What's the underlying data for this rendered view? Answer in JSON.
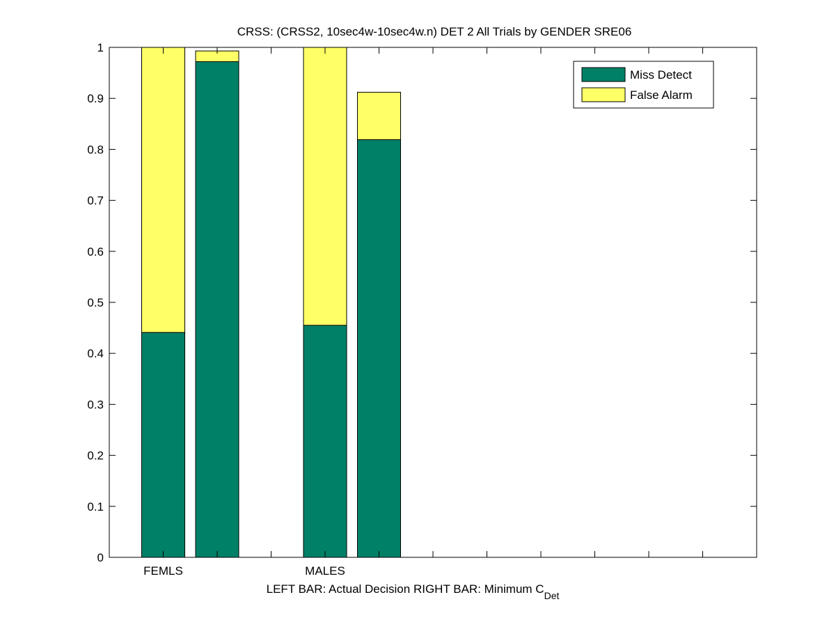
{
  "chart_data": {
    "type": "bar",
    "stacked": true,
    "title": "CRSS: (CRSS2, 10sec4w-10sec4w.n) DET 2 All Trials by GENDER SRE06",
    "xlabel_main": "LEFT BAR: Actual Decision     RIGHT BAR: Minimum C",
    "xlabel_sub": "Det",
    "ylabel": "",
    "ylim": [
      0,
      1
    ],
    "yticks": [
      "0",
      "0.1",
      "0.2",
      "0.3",
      "0.4",
      "0.5",
      "0.6",
      "0.7",
      "0.8",
      "0.9",
      "1"
    ],
    "xlim": [
      0.5,
      6.5
    ],
    "xtick_positions": [
      1,
      1.5,
      2,
      2.5,
      3,
      3.5,
      4,
      4.5,
      5,
      5.5,
      6
    ],
    "categories": [
      {
        "label": "FEMLS",
        "x": 1.0
      },
      {
        "label": "MALES",
        "x": 2.5
      }
    ],
    "bar_width": 0.4,
    "bars": [
      {
        "group": "FEMLS",
        "kind": "Actual Decision",
        "x": 1.0,
        "miss_detect": 0.441,
        "false_alarm": 0.559
      },
      {
        "group": "FEMLS",
        "kind": "Minimum C_Det",
        "x": 1.5,
        "miss_detect": 0.972,
        "false_alarm": 0.021
      },
      {
        "group": "MALES",
        "kind": "Actual Decision",
        "x": 2.5,
        "miss_detect": 0.455,
        "false_alarm": 0.545
      },
      {
        "group": "MALES",
        "kind": "Minimum C_Det",
        "x": 3.0,
        "miss_detect": 0.819,
        "false_alarm": 0.093
      }
    ],
    "series": [
      {
        "name": "Miss Detect",
        "key": "miss_detect",
        "color": "#008066"
      },
      {
        "name": "False Alarm",
        "key": "false_alarm",
        "color": "#FFFF66"
      }
    ],
    "legend": {
      "placement": "top-right"
    },
    "grid": false
  }
}
